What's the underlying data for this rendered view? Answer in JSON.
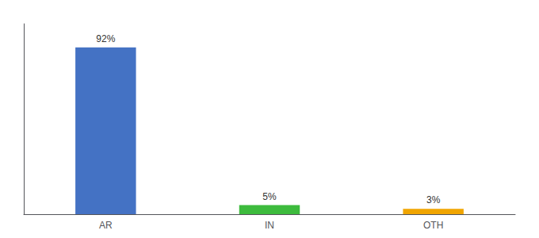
{
  "chart_data": {
    "type": "bar",
    "categories": [
      "AR",
      "IN",
      "OTH"
    ],
    "values": [
      92,
      5,
      3
    ],
    "value_labels": [
      "92%",
      "5%",
      "3%"
    ],
    "colors": [
      "#4472c4",
      "#3dbb3d",
      "#f0a500"
    ],
    "ylim": [
      0,
      105
    ],
    "grid": false,
    "data_labels": true,
    "tick_labels": "x"
  }
}
